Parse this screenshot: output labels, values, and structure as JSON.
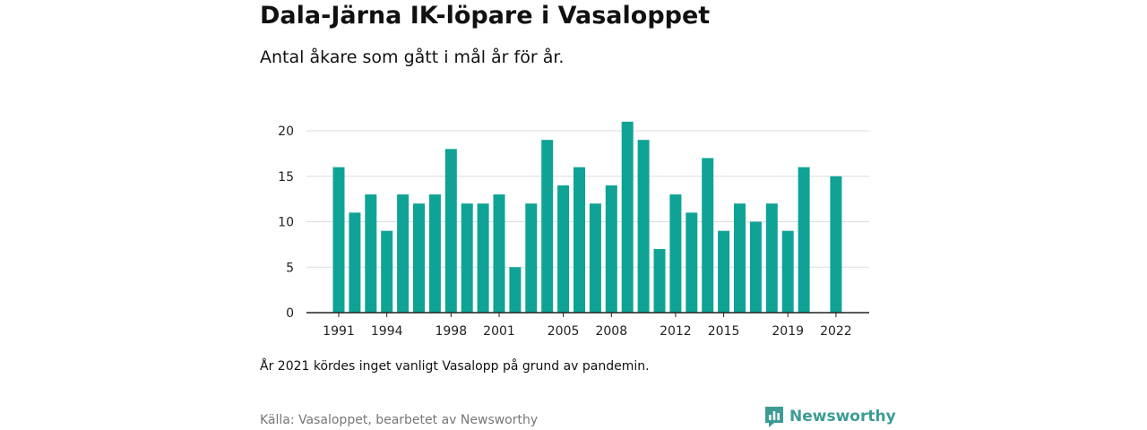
{
  "colors": {
    "bar": "#0fa396",
    "grid": "#dddddd",
    "axis": "#222222",
    "logo": "#3b9c94"
  },
  "title": "Dala-Järna IK-löpare i Vasaloppet",
  "subtitle": "Antal åkare som gått i mål år för år.",
  "note": "År 2021 kördes inget vanligt Vasalopp på grund av pandemin.",
  "source": "Källa: Vasaloppet, bearbetet av Newsworthy",
  "logo": {
    "text": "Newsworthy",
    "icon": "newsworthy-logo-icon"
  },
  "chart_data": {
    "type": "bar",
    "categories": [
      1991,
      1992,
      1993,
      1994,
      1995,
      1996,
      1997,
      1998,
      1999,
      2000,
      2001,
      2002,
      2003,
      2004,
      2005,
      2006,
      2007,
      2008,
      2009,
      2010,
      2011,
      2012,
      2013,
      2014,
      2015,
      2016,
      2017,
      2018,
      2019,
      2020,
      2021,
      2022
    ],
    "values": [
      16,
      11,
      13,
      9,
      13,
      12,
      13,
      18,
      12,
      12,
      13,
      5,
      12,
      19,
      14,
      16,
      12,
      14,
      21,
      19,
      7,
      13,
      11,
      17,
      9,
      12,
      10,
      12,
      9,
      16,
      null,
      15
    ],
    "x_tick_labels": [
      "1991",
      "1994",
      "1998",
      "2001",
      "2005",
      "2008",
      "2012",
      "2015",
      "2019",
      "2022"
    ],
    "y_ticks": [
      0,
      5,
      10,
      15,
      20
    ],
    "ylim": [
      0,
      22
    ],
    "grid": true
  }
}
